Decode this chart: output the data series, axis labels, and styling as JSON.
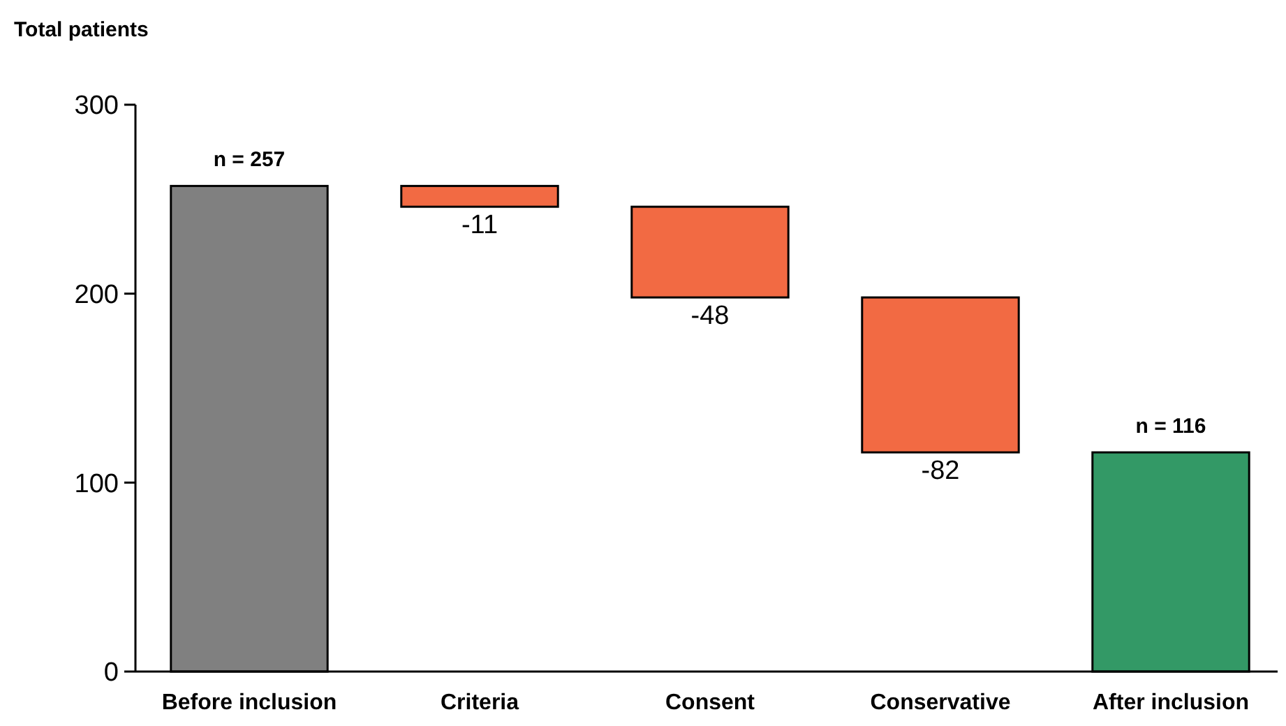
{
  "chart_data": {
    "type": "bar",
    "ylabel": "Total patients",
    "categories": [
      "Before inclusion",
      "Criteria",
      "Consent",
      "Conservative",
      "After inclusion"
    ],
    "values": [
      257,
      -11,
      -48,
      -82,
      116
    ],
    "base": [
      0,
      257,
      246,
      198,
      0
    ],
    "colors": [
      "#808080",
      "#f26a43",
      "#f26a43",
      "#f26a43",
      "#339966"
    ],
    "value_labels": [
      "n = 257",
      "-11",
      "-48",
      "-82",
      "n = 116"
    ],
    "ylim": [
      0,
      300
    ],
    "yticks": [
      0,
      100,
      200,
      300
    ],
    "grid": false
  }
}
